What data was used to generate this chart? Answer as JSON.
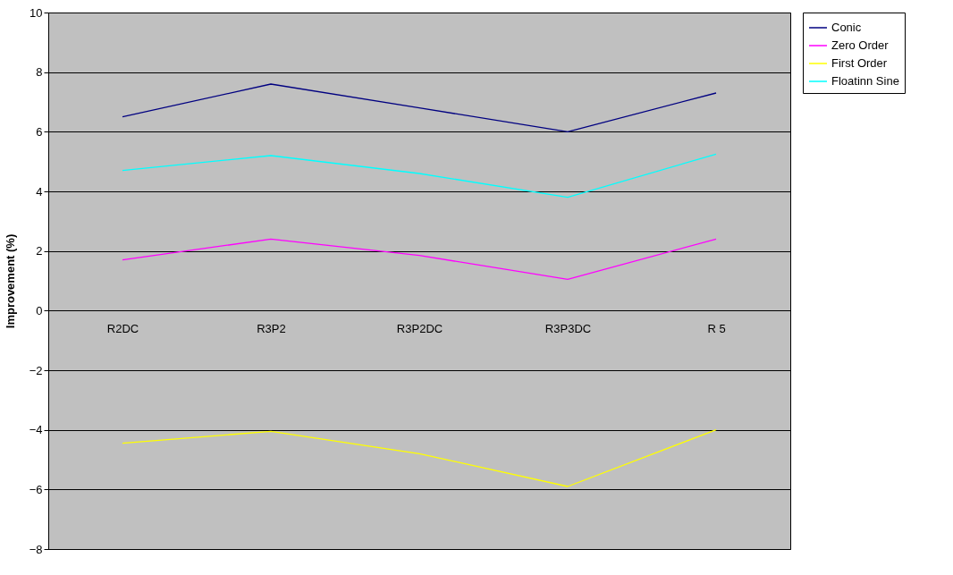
{
  "chart_data": {
    "type": "line",
    "ylabel": "Improvement (%)",
    "categories": [
      "R2DC",
      "R3P2",
      "R3P2DC",
      "R3P3DC",
      "R 5"
    ],
    "series": [
      {
        "name": "Conic",
        "color": "#000080",
        "values": [
          6.5,
          7.6,
          6.8,
          6.0,
          7.3
        ]
      },
      {
        "name": "Zero Order",
        "color": "#ff00ff",
        "values": [
          1.7,
          2.4,
          1.85,
          1.05,
          2.4
        ]
      },
      {
        "name": "First Order",
        "color": "#ffff00",
        "values": [
          -4.45,
          -4.05,
          -4.8,
          -5.9,
          -4.0
        ]
      },
      {
        "name": "Floatinn Sine",
        "color": "#00ffff",
        "values": [
          4.7,
          5.2,
          4.6,
          3.8,
          5.25
        ]
      }
    ],
    "ylim": [
      -8,
      10
    ],
    "yticks": [
      -8,
      -6,
      -4,
      -2,
      0,
      2,
      4,
      6,
      8,
      10
    ],
    "grid": "y",
    "legend": "right",
    "marker": "none",
    "line_style": "solid"
  }
}
